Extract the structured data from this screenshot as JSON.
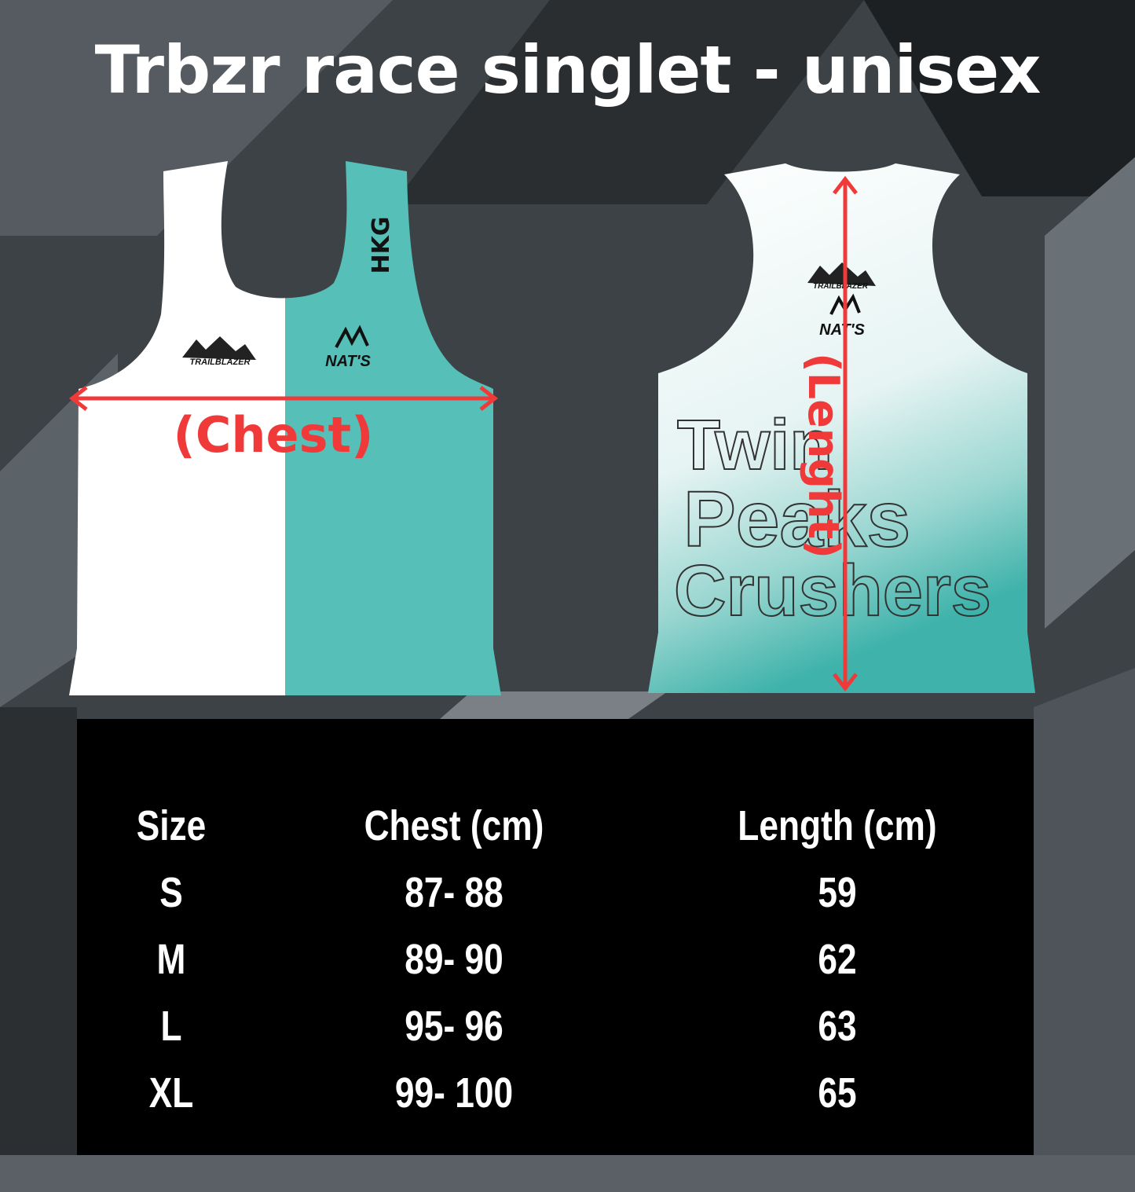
{
  "title": "Trbzr race singlet - unisex",
  "front": {
    "chest_label": "(Chest)",
    "country": "HKG",
    "logo_brand": "TRAILBLAZER",
    "logo_sponsor": "NAT'S"
  },
  "back": {
    "length_label": "(Lenght)",
    "logo_brand": "TRAILBLAZER",
    "logo_sponsor": "NAT'S",
    "team_lines": [
      "Twin",
      "Peaks",
      "Crushers"
    ]
  },
  "colors": {
    "teal": "#55bfb8",
    "measure_red": "#f03a3a",
    "background": "#3a3f44",
    "table_bg": "#000000"
  },
  "size_table": {
    "headers": [
      "Size",
      "Chest (cm)",
      "Length (cm)"
    ],
    "rows": [
      [
        "S",
        "87- 88",
        "59"
      ],
      [
        "M",
        "89- 90",
        "62"
      ],
      [
        "L",
        "95- 96",
        "63"
      ],
      [
        "XL",
        "99- 100",
        "65"
      ]
    ]
  }
}
